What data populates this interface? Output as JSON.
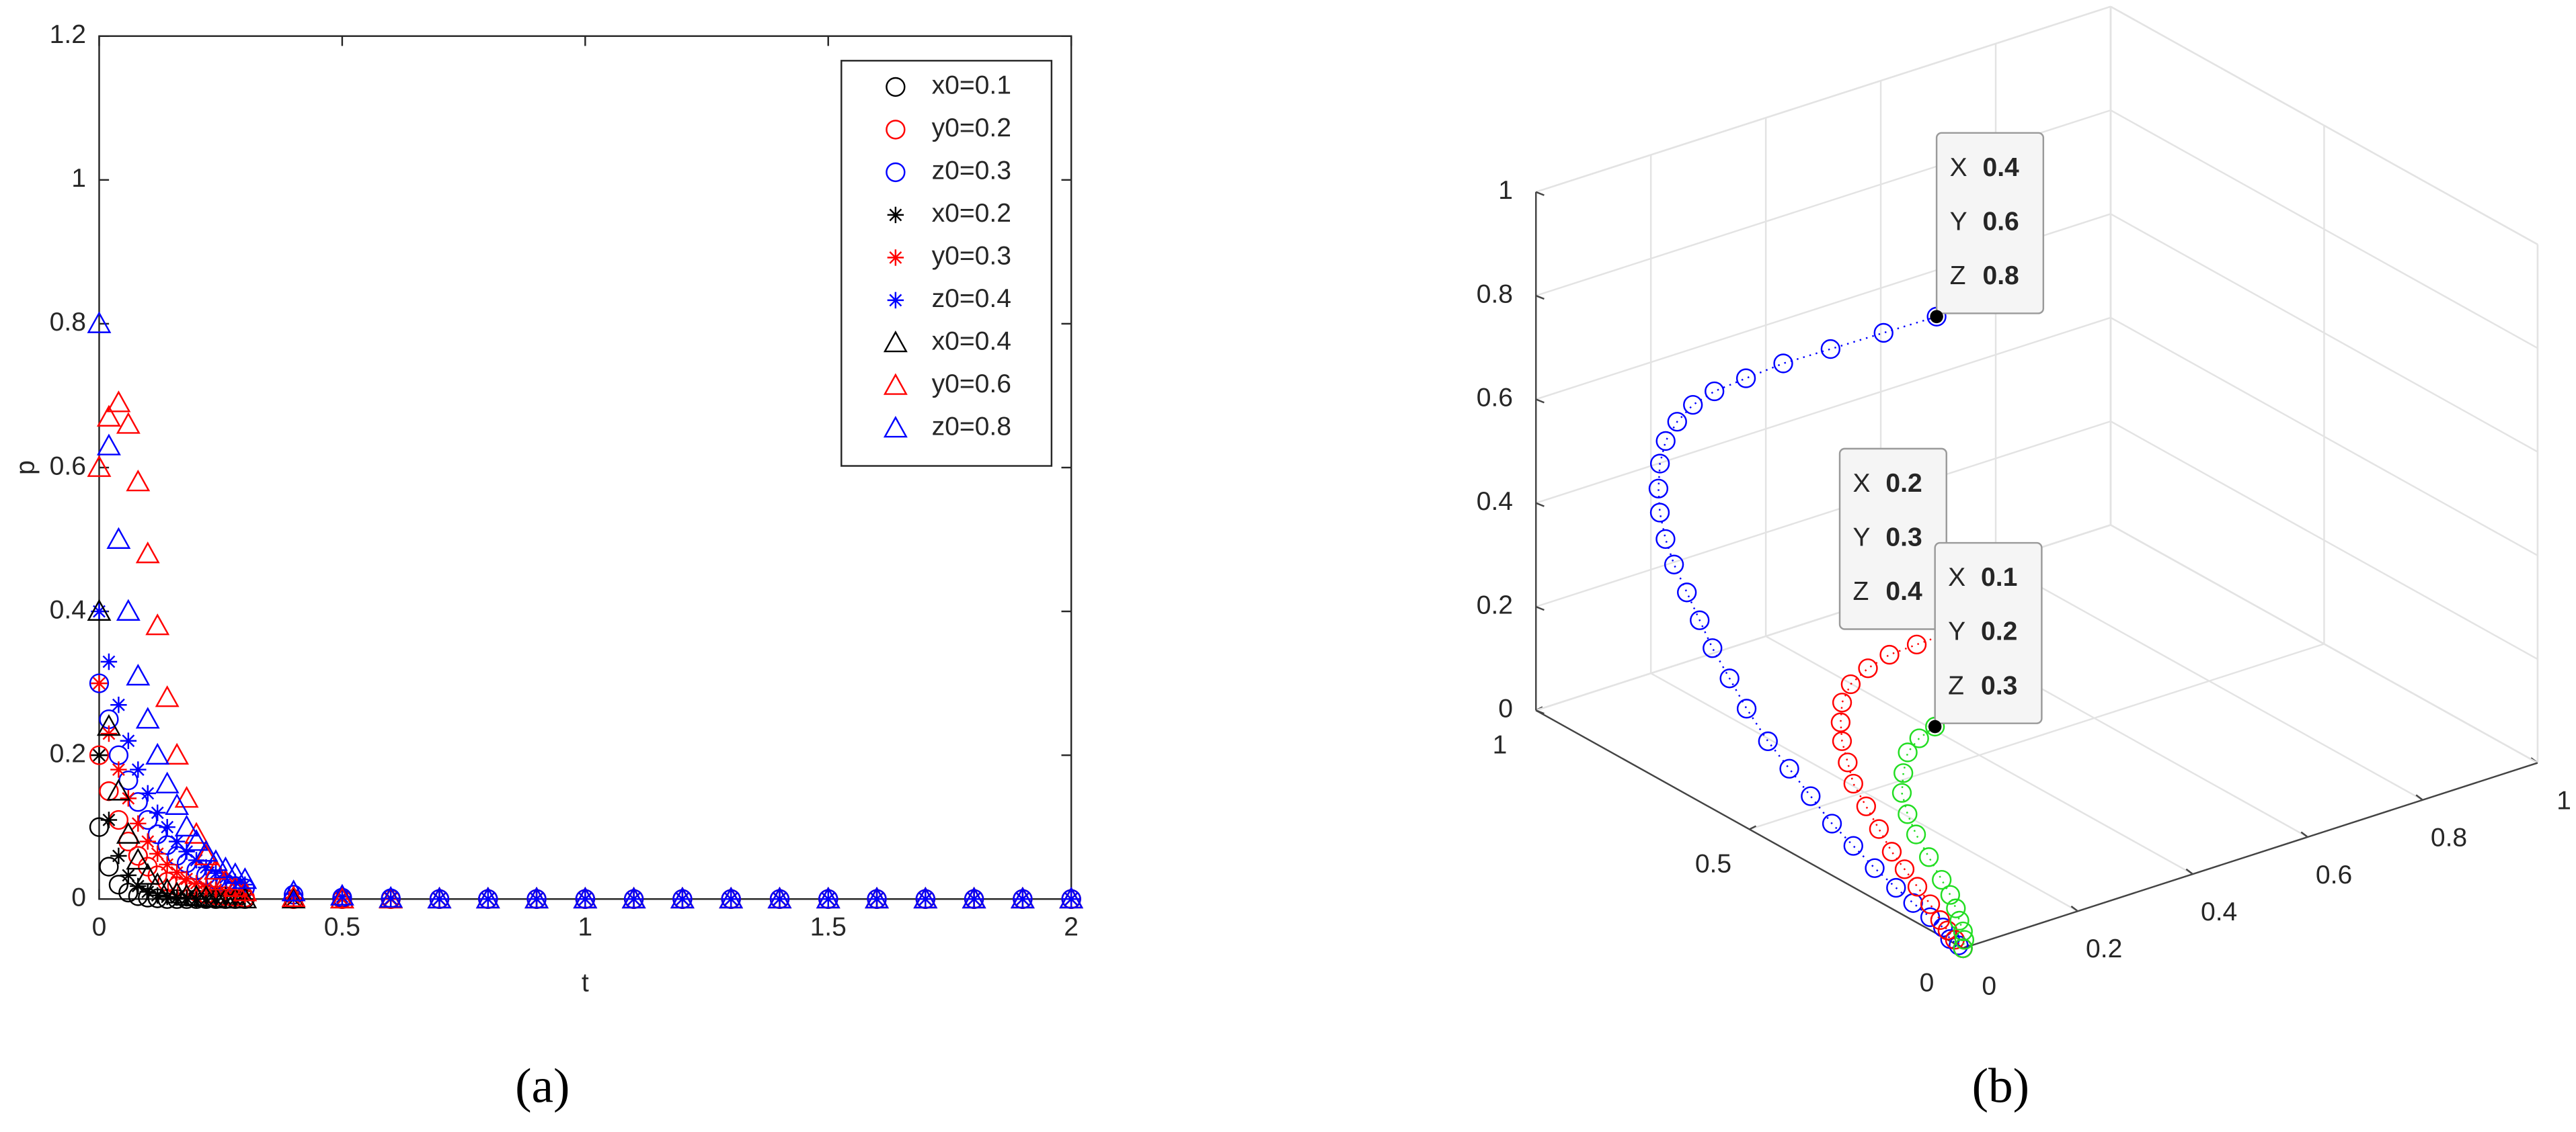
{
  "chart_data": [
    {
      "type": "scatter",
      "caption": "(a)",
      "xlabel": "t",
      "ylabel": "p",
      "xlim": [
        0,
        2
      ],
      "ylim": [
        0,
        1.2
      ],
      "xticks": [
        0,
        0.5,
        1,
        1.5,
        2
      ],
      "yticks": [
        0,
        0.2,
        0.4,
        0.6,
        0.8,
        1,
        1.2
      ],
      "grid": false,
      "legend": "upper right",
      "x": [
        0,
        0.02,
        0.04,
        0.06,
        0.08,
        0.1,
        0.12,
        0.14,
        0.16,
        0.18,
        0.2,
        0.22,
        0.24,
        0.26,
        0.28,
        0.3,
        0.4,
        0.5,
        0.6,
        0.7,
        0.8,
        0.9,
        1,
        1.1,
        1.2,
        1.3,
        1.4,
        1.5,
        1.6,
        1.7,
        1.8,
        1.9,
        2
      ],
      "series": [
        {
          "name": "x0=0.1",
          "color": "#000000",
          "marker": "o",
          "values": [
            0.1,
            0.045,
            0.02,
            0.009,
            0.004,
            0.002,
            0.001,
            0,
            0,
            0,
            0,
            0,
            0,
            0,
            0,
            0,
            0,
            0,
            0,
            0,
            0,
            0,
            0,
            0,
            0,
            0,
            0,
            0,
            0,
            0,
            0,
            0,
            0
          ]
        },
        {
          "name": "y0=0.2",
          "color": "#ff0000",
          "marker": "o",
          "values": [
            0.2,
            0.15,
            0.11,
            0.08,
            0.06,
            0.045,
            0.033,
            0.024,
            0.018,
            0.013,
            0.01,
            0.007,
            0.005,
            0.004,
            0.003,
            0.002,
            0,
            0,
            0,
            0,
            0,
            0,
            0,
            0,
            0,
            0,
            0,
            0,
            0,
            0,
            0,
            0,
            0
          ]
        },
        {
          "name": "z0=0.3",
          "color": "#0000ff",
          "marker": "o",
          "values": [
            0.3,
            0.25,
            0.2,
            0.165,
            0.135,
            0.11,
            0.09,
            0.075,
            0.06,
            0.05,
            0.04,
            0.033,
            0.027,
            0.022,
            0.018,
            0.015,
            0.006,
            0.002,
            0.001,
            0,
            0,
            0,
            0,
            0,
            0,
            0,
            0,
            0,
            0,
            0,
            0,
            0,
            0
          ]
        },
        {
          "name": "x0=0.2",
          "color": "#000000",
          "marker": "*",
          "values": [
            0.2,
            0.11,
            0.06,
            0.033,
            0.018,
            0.01,
            0.005,
            0.003,
            0.002,
            0.001,
            0,
            0,
            0,
            0,
            0,
            0,
            0,
            0,
            0,
            0,
            0,
            0,
            0,
            0,
            0,
            0,
            0,
            0,
            0,
            0,
            0,
            0,
            0
          ]
        },
        {
          "name": "y0=0.3",
          "color": "#ff0000",
          "marker": "*",
          "values": [
            0.3,
            0.23,
            0.18,
            0.14,
            0.105,
            0.08,
            0.063,
            0.048,
            0.037,
            0.028,
            0.022,
            0.017,
            0.013,
            0.01,
            0.008,
            0.006,
            0.002,
            0,
            0,
            0,
            0,
            0,
            0,
            0,
            0,
            0,
            0,
            0,
            0,
            0,
            0,
            0,
            0
          ]
        },
        {
          "name": "z0=0.4",
          "color": "#0000ff",
          "marker": "*",
          "values": [
            0.4,
            0.33,
            0.27,
            0.22,
            0.18,
            0.147,
            0.12,
            0.1,
            0.08,
            0.066,
            0.054,
            0.044,
            0.036,
            0.03,
            0.024,
            0.02,
            0.007,
            0.003,
            0.001,
            0,
            0,
            0,
            0,
            0,
            0,
            0,
            0,
            0,
            0,
            0,
            0,
            0,
            0
          ]
        },
        {
          "name": "x0=0.4",
          "color": "#000000",
          "marker": "^",
          "values": [
            0.4,
            0.24,
            0.15,
            0.09,
            0.054,
            0.033,
            0.02,
            0.012,
            0.007,
            0.004,
            0.003,
            0.002,
            0.001,
            0,
            0,
            0,
            0,
            0,
            0,
            0,
            0,
            0,
            0,
            0,
            0,
            0,
            0,
            0,
            0,
            0,
            0,
            0,
            0
          ]
        },
        {
          "name": "y0=0.6",
          "color": "#ff0000",
          "marker": "^",
          "values": [
            0.6,
            0.67,
            0.69,
            0.66,
            0.58,
            0.48,
            0.38,
            0.28,
            0.2,
            0.14,
            0.09,
            0.06,
            0.04,
            0.025,
            0.016,
            0.01,
            0.002,
            0,
            0,
            0,
            0,
            0,
            0,
            0,
            0,
            0,
            0,
            0,
            0,
            0,
            0,
            0,
            0
          ]
        },
        {
          "name": "z0=0.8",
          "color": "#0000ff",
          "marker": "^",
          "values": [
            0.8,
            0.63,
            0.5,
            0.4,
            0.31,
            0.25,
            0.2,
            0.16,
            0.13,
            0.1,
            0.08,
            0.065,
            0.052,
            0.042,
            0.034,
            0.027,
            0.01,
            0.004,
            0.001,
            0,
            0,
            0,
            0,
            0,
            0,
            0,
            0,
            0,
            0,
            0,
            0,
            0,
            0
          ]
        }
      ]
    },
    {
      "type": "scatter3d",
      "caption": "(b)",
      "xlim": [
        0,
        1
      ],
      "ylim": [
        0,
        1
      ],
      "zlim": [
        0,
        1
      ],
      "xticks": [
        0,
        0.2,
        0.4,
        0.6,
        0.8,
        1
      ],
      "yticks": [
        0,
        0.5,
        1
      ],
      "zticks": [
        0,
        0.2,
        0.4,
        0.6,
        0.8,
        1
      ],
      "grid": true,
      "datatip_labels": [
        "X",
        "Y",
        "Z"
      ],
      "datatip_color": "#1a9fe8",
      "series": [
        {
          "color": "#0000ff",
          "x": [
            0.4,
            0.33,
            0.26,
            0.2,
            0.15,
            0.11,
            0.08,
            0.06,
            0.04,
            0.03,
            0.02,
            0.015,
            0.01,
            0.01,
            0.01,
            0.01,
            0.01,
            0.01,
            0.01,
            0.01,
            0.01,
            0.01,
            0.01,
            0.01,
            0.01,
            0.01,
            0.01,
            0.01,
            0.01,
            0,
            0,
            0
          ],
          "y": [
            0.6,
            0.63,
            0.66,
            0.69,
            0.71,
            0.73,
            0.74,
            0.75,
            0.75,
            0.75,
            0.74,
            0.73,
            0.71,
            0.69,
            0.66,
            0.63,
            0.6,
            0.56,
            0.52,
            0.47,
            0.42,
            0.37,
            0.32,
            0.27,
            0.22,
            0.17,
            0.13,
            0.09,
            0.06,
            0.03,
            0.01,
            0
          ],
          "z": [
            0.8,
            0.78,
            0.76,
            0.74,
            0.72,
            0.7,
            0.68,
            0.65,
            0.62,
            0.58,
            0.54,
            0.5,
            0.46,
            0.42,
            0.38,
            0.34,
            0.3,
            0.26,
            0.22,
            0.18,
            0.15,
            0.12,
            0.09,
            0.07,
            0.05,
            0.035,
            0.024,
            0.015,
            0.009,
            0.004,
            0.001,
            0
          ]
        },
        {
          "color": "#ff0000",
          "x": [
            0.2,
            0.15,
            0.11,
            0.08,
            0.05,
            0.035,
            0.025,
            0.02,
            0.015,
            0.01,
            0.01,
            0.01,
            0.01,
            0.01,
            0.01,
            0.01,
            0.005,
            0.003,
            0.001,
            0
          ],
          "y": [
            0.3,
            0.31,
            0.32,
            0.33,
            0.33,
            0.33,
            0.32,
            0.31,
            0.29,
            0.27,
            0.24,
            0.21,
            0.18,
            0.15,
            0.12,
            0.09,
            0.06,
            0.04,
            0.02,
            0
          ],
          "z": [
            0.4,
            0.39,
            0.38,
            0.36,
            0.34,
            0.31,
            0.28,
            0.25,
            0.22,
            0.19,
            0.16,
            0.13,
            0.1,
            0.08,
            0.06,
            0.04,
            0.025,
            0.015,
            0.007,
            0
          ]
        },
        {
          "color": "#22dd22",
          "x": [
            0.1,
            0.08,
            0.06,
            0.045,
            0.035,
            0.03,
            0.03,
            0.03,
            0.03,
            0.03,
            0.025,
            0.02,
            0.015,
            0.01,
            0
          ],
          "y": [
            0.2,
            0.21,
            0.21,
            0.2,
            0.19,
            0.17,
            0.15,
            0.12,
            0.09,
            0.07,
            0.05,
            0.035,
            0.02,
            0.01,
            0
          ],
          "z": [
            0.3,
            0.28,
            0.26,
            0.23,
            0.2,
            0.17,
            0.14,
            0.11,
            0.08,
            0.06,
            0.045,
            0.03,
            0.018,
            0.008,
            0
          ]
        }
      ]
    }
  ]
}
